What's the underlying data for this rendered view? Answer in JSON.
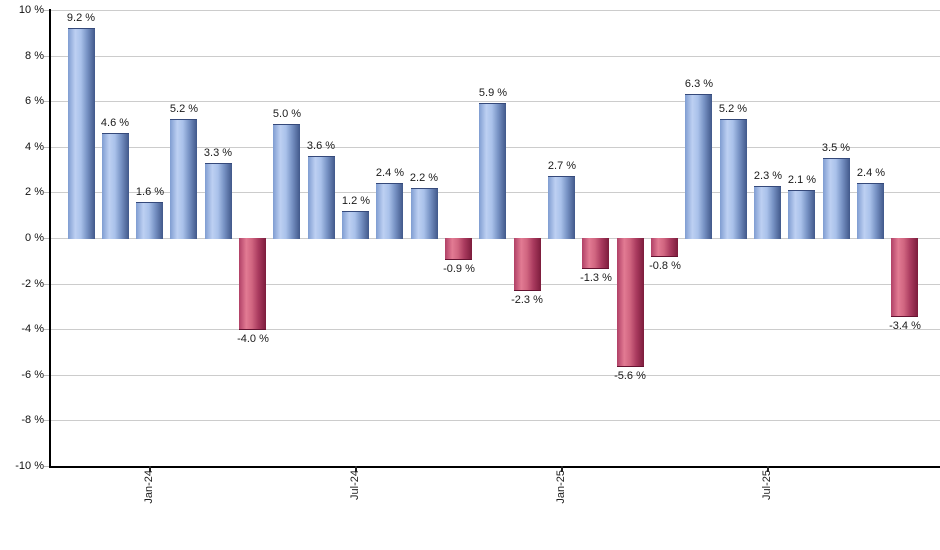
{
  "chart_data": {
    "type": "bar",
    "title": "",
    "unit": "%",
    "values": [
      9.2,
      4.6,
      1.6,
      5.2,
      3.3,
      -4.0,
      5.0,
      3.6,
      1.2,
      2.4,
      2.2,
      -0.9,
      5.9,
      -2.3,
      2.7,
      -1.3,
      -5.6,
      -0.8,
      6.3,
      5.2,
      2.3,
      2.1,
      3.5,
      2.4,
      -3.4
    ],
    "value_labels": [
      "9.2 %",
      "4.6 %",
      "1.6 %",
      "5.2 %",
      "3.3 %",
      "-4.0 %",
      "5.0 %",
      "3.6 %",
      "1.2 %",
      "2.4 %",
      "2.2 %",
      "-0.9 %",
      "5.9 %",
      "-2.3 %",
      "2.7 %",
      "-1.3 %",
      "-5.6 %",
      "-0.8 %",
      "6.3 %",
      "5.2 %",
      "2.3 %",
      "2.1 %",
      "3.5 %",
      "2.4 %",
      "-3.4 %"
    ],
    "x_ticks": [
      {
        "bar_index": 2,
        "label": "Jan-24"
      },
      {
        "bar_index": 8,
        "label": "Jul-24"
      },
      {
        "bar_index": 14,
        "label": "Jan-25"
      },
      {
        "bar_index": 20,
        "label": "Jul-25"
      }
    ],
    "y_ticks": [
      10,
      8,
      6,
      4,
      2,
      0,
      -2,
      -4,
      -6,
      -8,
      -10
    ],
    "y_tick_suffix": " %",
    "ylim": [
      -10,
      10
    ],
    "grid": true,
    "legend_position": "none",
    "colors": {
      "positive_highlight": "#bdd0f2",
      "positive_edge": "#41588a",
      "negative_highlight": "#e27b93",
      "negative_edge": "#7c1c3c",
      "gridline": "#cccccc",
      "axis": "#000000",
      "label_text": "#1a1a1a"
    }
  }
}
